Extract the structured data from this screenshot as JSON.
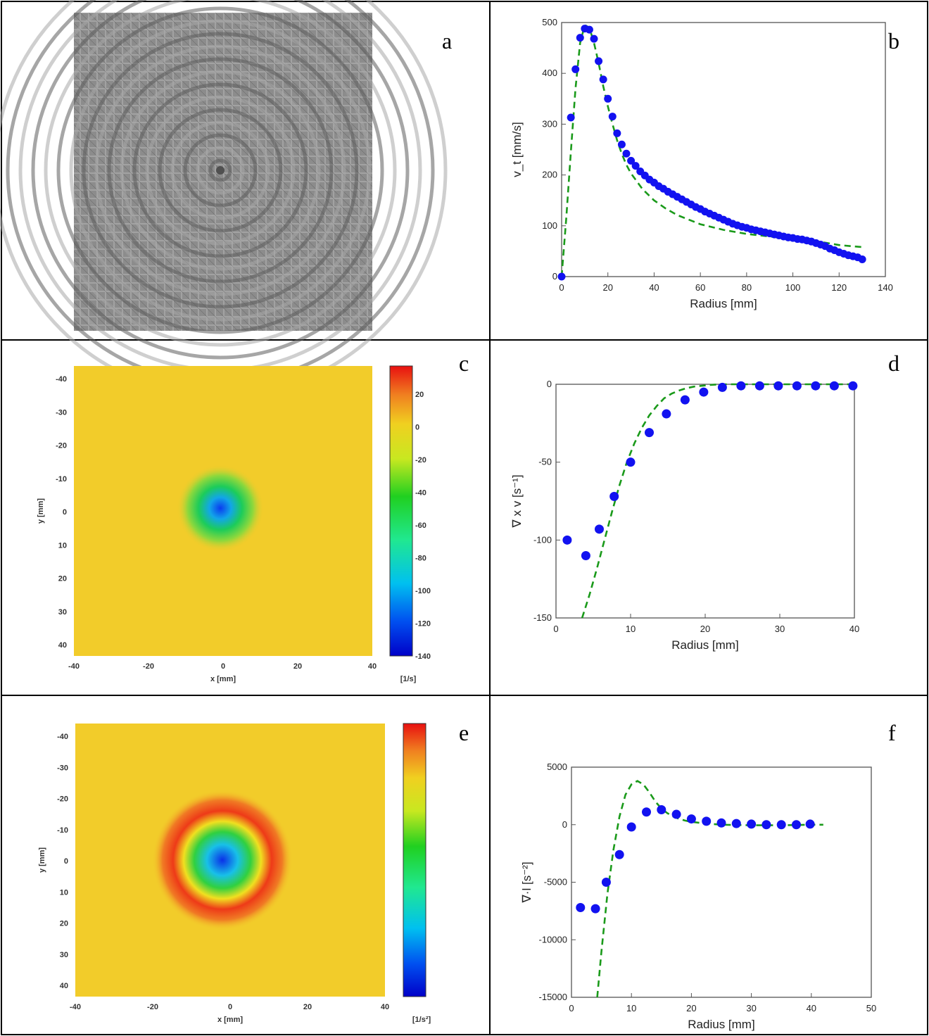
{
  "panels": [
    {
      "letter": "a"
    },
    {
      "letter": "b"
    },
    {
      "letter": "c"
    },
    {
      "letter": "d"
    },
    {
      "letter": "e"
    },
    {
      "letter": "f"
    }
  ],
  "colors": {
    "markers": "#1212f0",
    "fit": "#1a9a1a",
    "field_background": "#f2cc2a"
  },
  "chart_data": [
    {
      "panel": "a",
      "type": "other",
      "description": "velocity vector field image showing circular vortex pattern"
    },
    {
      "panel": "b",
      "type": "scatter",
      "xlabel": "Radius  [mm]",
      "ylabel": "v_t  [mm/s]",
      "xlim": [
        0,
        140
      ],
      "ylim": [
        0,
        500
      ],
      "xticks": [
        0,
        20,
        40,
        60,
        80,
        100,
        120,
        140
      ],
      "yticks": [
        0,
        100,
        200,
        300,
        400,
        500
      ],
      "x": [
        0,
        4,
        6,
        8,
        10,
        12,
        14,
        16,
        18,
        20,
        22,
        24,
        26,
        28,
        30,
        32,
        34,
        36,
        38,
        40,
        42,
        44,
        46,
        48,
        50,
        52,
        54,
        56,
        58,
        60,
        62,
        64,
        66,
        68,
        70,
        72,
        74,
        76,
        78,
        80,
        82,
        84,
        86,
        88,
        90,
        92,
        94,
        96,
        98,
        100,
        102,
        104,
        106,
        108,
        110,
        112,
        114,
        116,
        118,
        120,
        122,
        124,
        126,
        128,
        130
      ],
      "y": [
        0,
        313,
        408,
        470,
        488,
        486,
        468,
        424,
        388,
        350,
        315,
        282,
        260,
        242,
        228,
        218,
        207,
        199,
        191,
        185,
        178,
        173,
        167,
        162,
        157,
        152,
        147,
        142,
        137,
        133,
        128,
        124,
        120,
        116,
        112,
        108,
        104,
        101,
        98,
        96,
        93,
        91,
        89,
        87,
        85,
        83,
        81,
        79,
        77,
        76,
        74,
        73,
        71,
        69,
        66,
        63,
        60,
        55,
        52,
        48,
        45,
        42,
        40,
        38,
        34
      ],
      "fit_x": [
        0,
        2,
        4,
        6,
        8,
        10,
        12,
        14,
        16,
        18,
        20,
        22,
        24,
        26,
        28,
        30,
        35,
        40,
        45,
        50,
        60,
        70,
        80,
        90,
        100,
        110,
        120,
        130
      ],
      "fit_y": [
        0,
        115,
        245,
        370,
        460,
        495,
        490,
        460,
        420,
        375,
        335,
        300,
        268,
        242,
        220,
        203,
        172,
        150,
        134,
        121,
        103,
        92,
        84,
        79,
        74,
        70,
        62,
        58
      ],
      "grid": false
    },
    {
      "panel": "c",
      "type": "heatmap",
      "xlabel": "x  [mm]",
      "ylabel": "y  [mm]",
      "xticks": [
        -40,
        -20,
        0,
        20,
        40
      ],
      "yticks": [
        -40,
        -30,
        -20,
        -10,
        0,
        10,
        20,
        30,
        40
      ],
      "colorbar_ticks": [
        20,
        0,
        -20,
        -40,
        -60,
        -80,
        -100,
        -120,
        -140
      ],
      "colorbar_unit": "[1/s]",
      "vmin": -145,
      "vmax": 30
    },
    {
      "panel": "d",
      "type": "scatter",
      "xlabel": "Radius  [mm]",
      "ylabel": "∇ x v  [s⁻¹]",
      "xlim": [
        0,
        40
      ],
      "ylim": [
        -150,
        0
      ],
      "xticks": [
        0,
        10,
        20,
        30,
        40
      ],
      "yticks": [
        0,
        -50,
        -100,
        -150
      ],
      "x": [
        1.5,
        4,
        5.8,
        7.8,
        10,
        12.5,
        14.8,
        17.3,
        19.8,
        22.3,
        24.8,
        27.3,
        29.8,
        32.3,
        34.8,
        37.3,
        39.8
      ],
      "y": [
        -100,
        -110,
        -93,
        -72,
        -50,
        -31,
        -19,
        -10,
        -5,
        -2,
        -1,
        -1,
        -1,
        -1,
        -1,
        -1,
        -1
      ],
      "fit_x": [
        3.5,
        4.5,
        5.5,
        6.5,
        7.5,
        8.5,
        9.5,
        10.5,
        11.5,
        12.5,
        13.5,
        14.5,
        15.5,
        16.5,
        17.5,
        18.5,
        19.5,
        20.5,
        21.5,
        22.5,
        25,
        30,
        35,
        40
      ],
      "fit_y": [
        -150,
        -135,
        -118,
        -100,
        -82,
        -65,
        -50,
        -38,
        -28,
        -20,
        -14,
        -9,
        -6,
        -4,
        -2.5,
        -1.5,
        -1,
        -0.5,
        -0.2,
        0,
        0,
        0,
        0,
        0
      ],
      "grid": false
    },
    {
      "panel": "e",
      "type": "heatmap",
      "xlabel": "x  [mm]",
      "ylabel": "y  [mm]",
      "xticks": [
        -40,
        -20,
        0,
        20,
        40
      ],
      "yticks": [
        -40,
        -30,
        -20,
        -10,
        0,
        10,
        20,
        30,
        40
      ],
      "colorbar_unit": "[1/s²]"
    },
    {
      "panel": "f",
      "type": "scatter",
      "xlabel": "Radius  [mm]",
      "ylabel": "∇·l  [s⁻²]",
      "xlim": [
        0,
        50
      ],
      "ylim": [
        -15000,
        5000
      ],
      "xticks": [
        0,
        10,
        20,
        30,
        40,
        50
      ],
      "yticks": [
        5000,
        0,
        -5000,
        -10000,
        -15000
      ],
      "x": [
        1.5,
        4,
        5.8,
        8,
        10,
        12.5,
        15,
        17.5,
        20,
        22.5,
        25,
        27.5,
        30,
        32.5,
        35,
        37.5,
        39.8
      ],
      "y": [
        -7200,
        -7300,
        -5000,
        -2600,
        -200,
        1100,
        1300,
        900,
        500,
        300,
        150,
        100,
        50,
        0,
        0,
        0,
        50
      ],
      "fit_x": [
        4.3,
        5,
        6,
        7,
        8,
        9,
        10,
        11,
        12,
        13,
        14,
        15,
        16,
        17,
        18,
        19,
        20,
        22,
        25,
        30,
        35,
        40,
        42
      ],
      "fit_y": [
        -15000,
        -11000,
        -6000,
        -2200,
        700,
        2600,
        3500,
        3800,
        3500,
        2800,
        2000,
        1400,
        1000,
        700,
        500,
        350,
        250,
        120,
        0,
        -50,
        -50,
        0,
        0
      ],
      "grid": false
    }
  ]
}
